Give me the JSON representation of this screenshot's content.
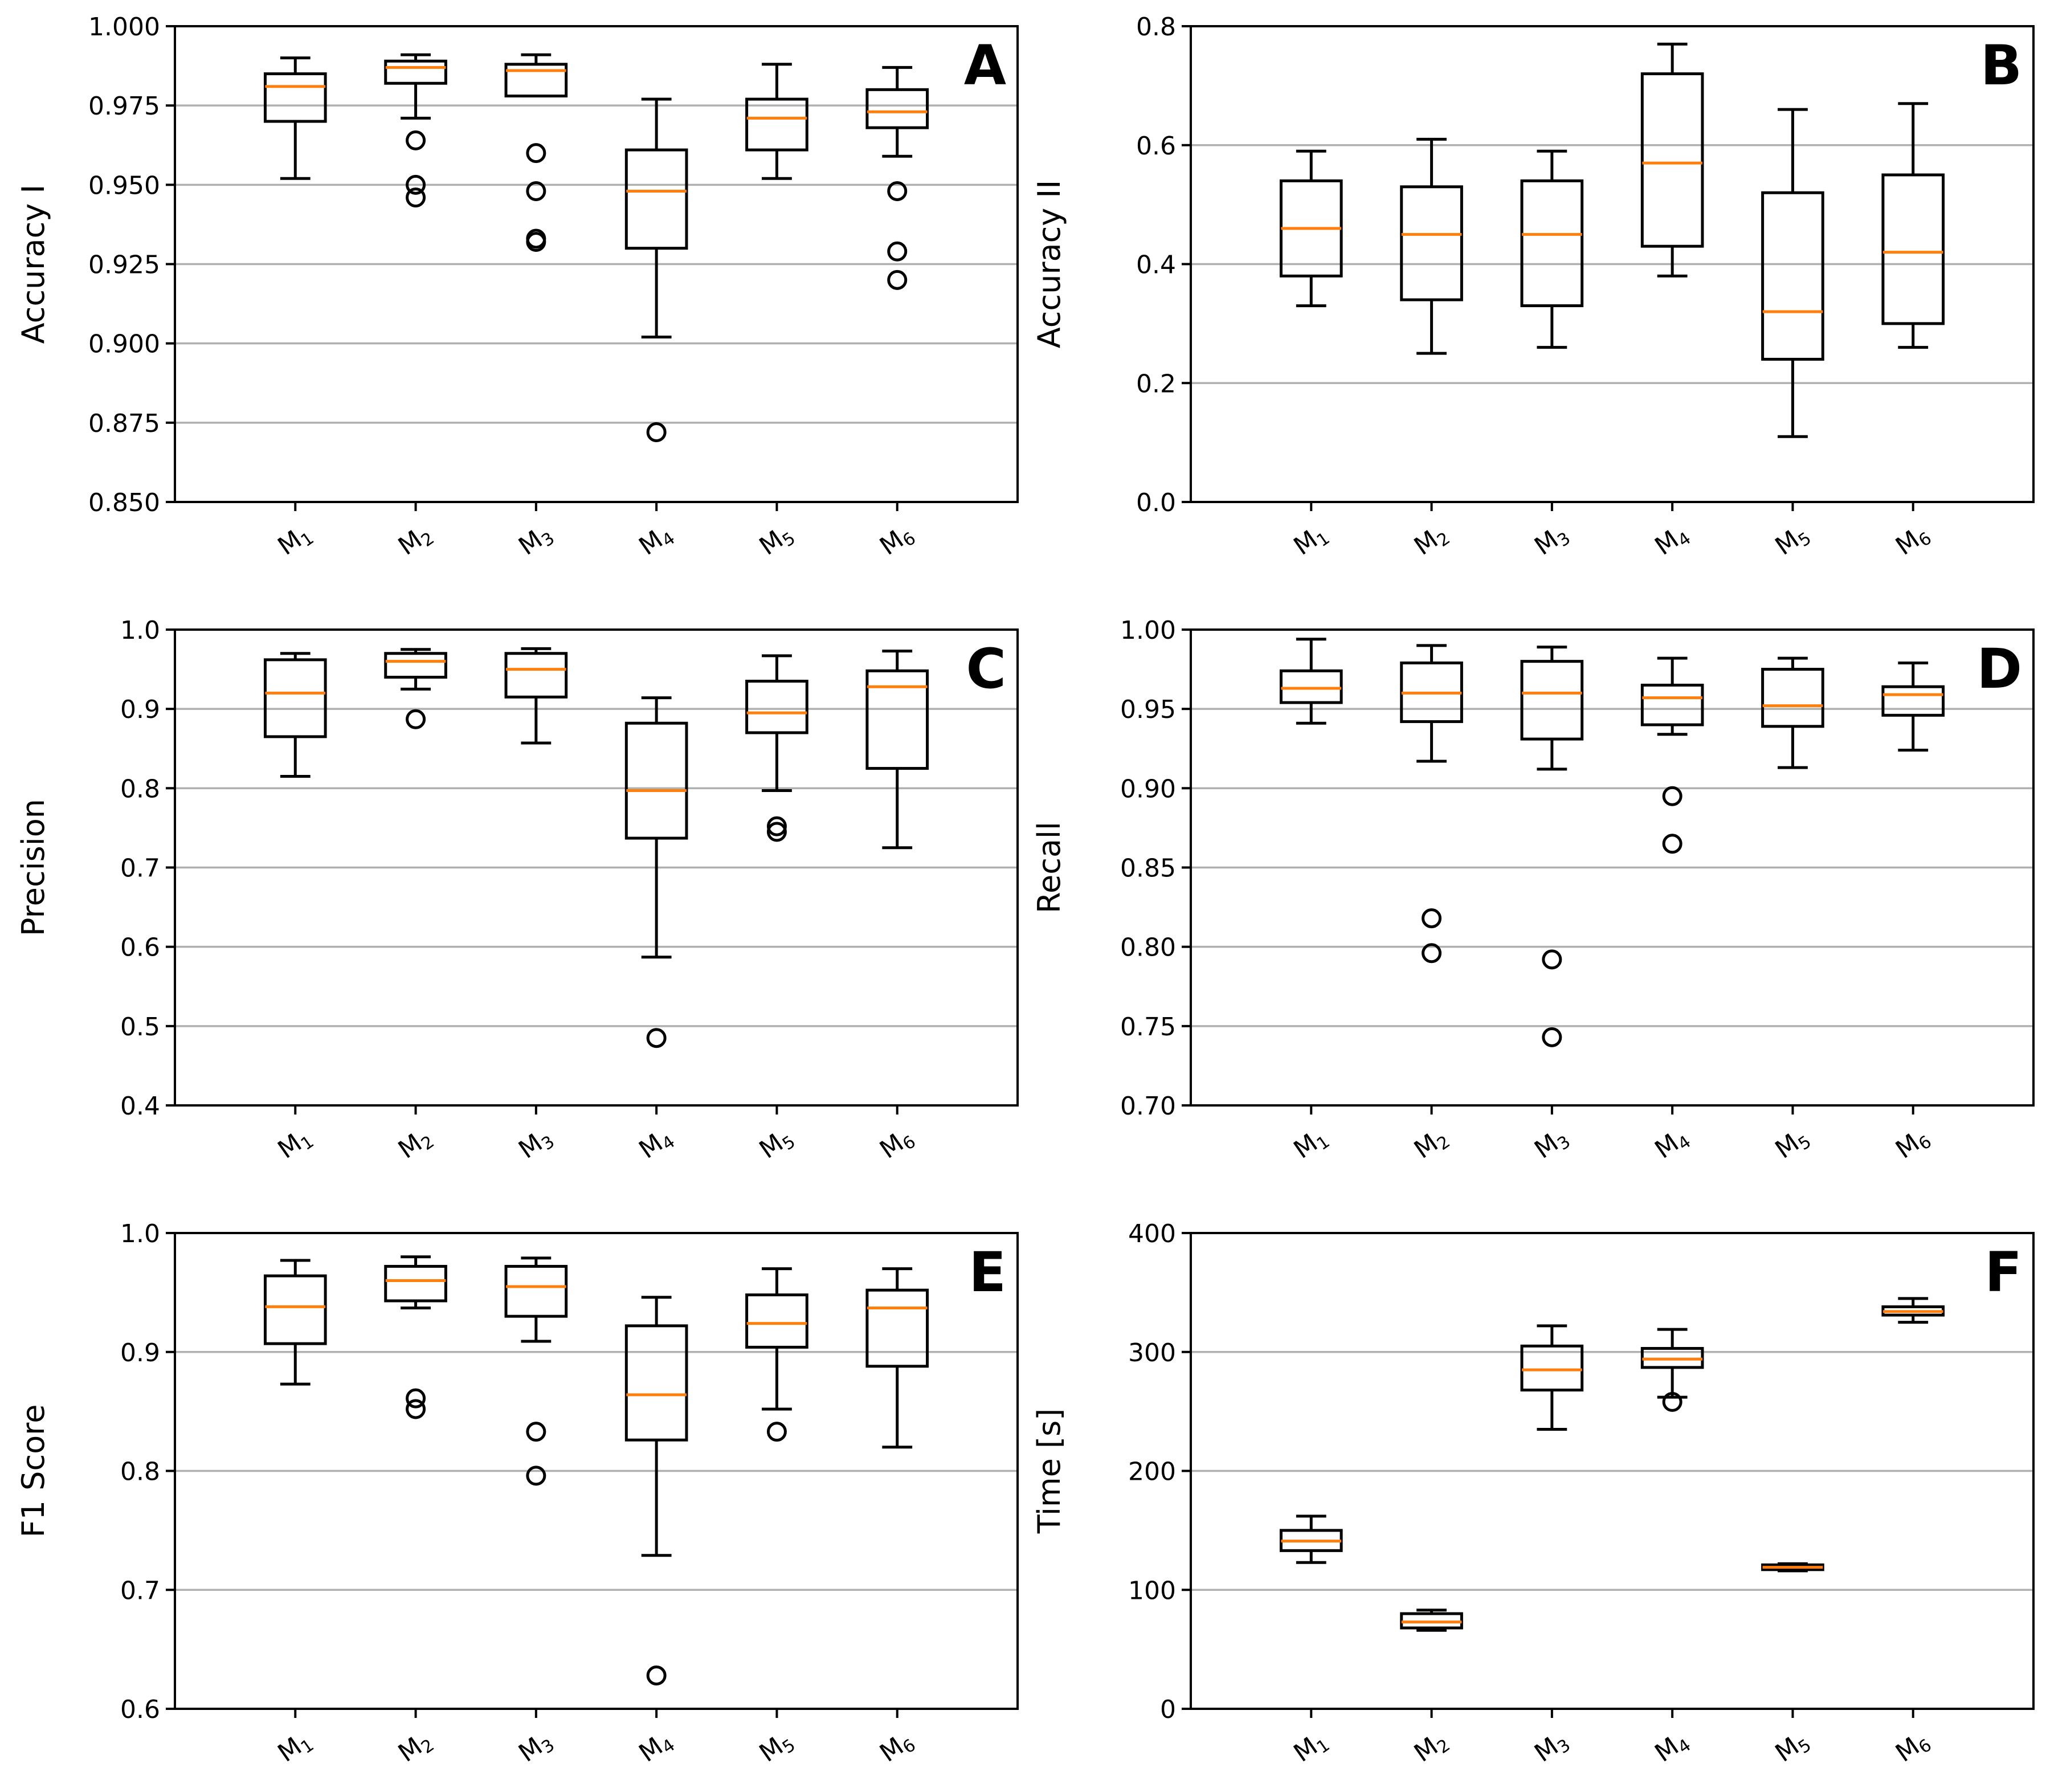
{
  "chart_data": [
    {
      "type": "box",
      "panel_label": "A",
      "ylabel": "Accuracy I",
      "ylim": [
        0.85,
        1.0
      ],
      "yticks": [
        "0.850",
        "0.875",
        "0.900",
        "0.925",
        "0.950",
        "0.975",
        "1.000"
      ],
      "yticks_values": [
        0.85,
        0.875,
        0.9,
        0.925,
        0.95,
        0.975,
        1.0
      ],
      "grid": "horizontal",
      "categories": [
        {
          "base": "M",
          "sub": "1"
        },
        {
          "base": "M",
          "sub": "2"
        },
        {
          "base": "M",
          "sub": "3"
        },
        {
          "base": "M",
          "sub": "4"
        },
        {
          "base": "M",
          "sub": "5"
        },
        {
          "base": "M",
          "sub": "6"
        }
      ],
      "boxes": [
        {
          "whislo": 0.952,
          "q1": 0.97,
          "med": 0.981,
          "q3": 0.985,
          "whishi": 0.99,
          "fliers": []
        },
        {
          "whislo": 0.971,
          "q1": 0.982,
          "med": 0.987,
          "q3": 0.989,
          "whishi": 0.991,
          "fliers": [
            0.964,
            0.95,
            0.946
          ]
        },
        {
          "whislo": 0.978,
          "q1": 0.978,
          "med": 0.986,
          "q3": 0.988,
          "whishi": 0.991,
          "fliers": [
            0.96,
            0.948,
            0.933,
            0.932
          ]
        },
        {
          "whislo": 0.902,
          "q1": 0.93,
          "med": 0.948,
          "q3": 0.961,
          "whishi": 0.977,
          "fliers": [
            0.872
          ]
        },
        {
          "whislo": 0.952,
          "q1": 0.961,
          "med": 0.971,
          "q3": 0.977,
          "whishi": 0.988,
          "fliers": []
        },
        {
          "whislo": 0.959,
          "q1": 0.968,
          "med": 0.973,
          "q3": 0.98,
          "whishi": 0.987,
          "fliers": [
            0.948,
            0.929,
            0.92
          ]
        }
      ]
    },
    {
      "type": "box",
      "panel_label": "B",
      "ylabel": "Accuracy II",
      "ylim": [
        0.0,
        0.8
      ],
      "yticks": [
        "0.0",
        "0.2",
        "0.4",
        "0.6",
        "0.8"
      ],
      "yticks_values": [
        0.0,
        0.2,
        0.4,
        0.6,
        0.8
      ],
      "grid": "horizontal",
      "categories": [
        {
          "base": "M",
          "sub": "1"
        },
        {
          "base": "M",
          "sub": "2"
        },
        {
          "base": "M",
          "sub": "3"
        },
        {
          "base": "M",
          "sub": "4"
        },
        {
          "base": "M",
          "sub": "5"
        },
        {
          "base": "M",
          "sub": "6"
        }
      ],
      "boxes": [
        {
          "whislo": 0.33,
          "q1": 0.38,
          "med": 0.46,
          "q3": 0.54,
          "whishi": 0.59,
          "fliers": []
        },
        {
          "whislo": 0.25,
          "q1": 0.34,
          "med": 0.45,
          "q3": 0.53,
          "whishi": 0.61,
          "fliers": []
        },
        {
          "whislo": 0.26,
          "q1": 0.33,
          "med": 0.45,
          "q3": 0.54,
          "whishi": 0.59,
          "fliers": []
        },
        {
          "whislo": 0.38,
          "q1": 0.43,
          "med": 0.57,
          "q3": 0.72,
          "whishi": 0.77,
          "fliers": []
        },
        {
          "whislo": 0.11,
          "q1": 0.24,
          "med": 0.32,
          "q3": 0.52,
          "whishi": 0.66,
          "fliers": []
        },
        {
          "whislo": 0.26,
          "q1": 0.3,
          "med": 0.42,
          "q3": 0.55,
          "whishi": 0.67,
          "fliers": []
        }
      ]
    },
    {
      "type": "box",
      "panel_label": "C",
      "ylabel": "Precision",
      "ylim": [
        0.4,
        1.0
      ],
      "yticks": [
        "0.4",
        "0.5",
        "0.6",
        "0.7",
        "0.8",
        "0.9",
        "1.0"
      ],
      "yticks_values": [
        0.4,
        0.5,
        0.6,
        0.7,
        0.8,
        0.9,
        1.0
      ],
      "grid": "horizontal",
      "categories": [
        {
          "base": "M",
          "sub": "1"
        },
        {
          "base": "M",
          "sub": "2"
        },
        {
          "base": "M",
          "sub": "3"
        },
        {
          "base": "M",
          "sub": "4"
        },
        {
          "base": "M",
          "sub": "5"
        },
        {
          "base": "M",
          "sub": "6"
        }
      ],
      "boxes": [
        {
          "whislo": 0.815,
          "q1": 0.865,
          "med": 0.92,
          "q3": 0.962,
          "whishi": 0.97,
          "fliers": []
        },
        {
          "whislo": 0.925,
          "q1": 0.94,
          "med": 0.96,
          "q3": 0.97,
          "whishi": 0.975,
          "fliers": [
            0.887
          ]
        },
        {
          "whislo": 0.857,
          "q1": 0.915,
          "med": 0.95,
          "q3": 0.97,
          "whishi": 0.976,
          "fliers": []
        },
        {
          "whislo": 0.587,
          "q1": 0.737,
          "med": 0.797,
          "q3": 0.882,
          "whishi": 0.914,
          "fliers": [
            0.485
          ]
        },
        {
          "whislo": 0.797,
          "q1": 0.87,
          "med": 0.895,
          "q3": 0.935,
          "whishi": 0.967,
          "fliers": [
            0.752,
            0.745
          ]
        },
        {
          "whislo": 0.725,
          "q1": 0.825,
          "med": 0.928,
          "q3": 0.948,
          "whishi": 0.973,
          "fliers": []
        }
      ]
    },
    {
      "type": "box",
      "panel_label": "D",
      "ylabel": "Recall",
      "ylim": [
        0.7,
        1.0
      ],
      "yticks": [
        "0.70",
        "0.75",
        "0.80",
        "0.85",
        "0.90",
        "0.95",
        "1.00"
      ],
      "yticks_values": [
        0.7,
        0.75,
        0.8,
        0.85,
        0.9,
        0.95,
        1.0
      ],
      "grid": "horizontal",
      "categories": [
        {
          "base": "M",
          "sub": "1"
        },
        {
          "base": "M",
          "sub": "2"
        },
        {
          "base": "M",
          "sub": "3"
        },
        {
          "base": "M",
          "sub": "4"
        },
        {
          "base": "M",
          "sub": "5"
        },
        {
          "base": "M",
          "sub": "6"
        }
      ],
      "boxes": [
        {
          "whislo": 0.941,
          "q1": 0.954,
          "med": 0.963,
          "q3": 0.974,
          "whishi": 0.994,
          "fliers": []
        },
        {
          "whislo": 0.917,
          "q1": 0.942,
          "med": 0.96,
          "q3": 0.979,
          "whishi": 0.99,
          "fliers": [
            0.818,
            0.796
          ]
        },
        {
          "whislo": 0.912,
          "q1": 0.931,
          "med": 0.96,
          "q3": 0.98,
          "whishi": 0.989,
          "fliers": [
            0.792,
            0.743
          ]
        },
        {
          "whislo": 0.934,
          "q1": 0.94,
          "med": 0.957,
          "q3": 0.965,
          "whishi": 0.982,
          "fliers": [
            0.895,
            0.865
          ]
        },
        {
          "whislo": 0.913,
          "q1": 0.939,
          "med": 0.952,
          "q3": 0.975,
          "whishi": 0.982,
          "fliers": []
        },
        {
          "whislo": 0.924,
          "q1": 0.946,
          "med": 0.959,
          "q3": 0.964,
          "whishi": 0.979,
          "fliers": []
        }
      ]
    },
    {
      "type": "box",
      "panel_label": "E",
      "ylabel": "F1 Score",
      "ylim": [
        0.6,
        1.0
      ],
      "yticks": [
        "0.6",
        "0.7",
        "0.8",
        "0.9",
        "1.0"
      ],
      "yticks_values": [
        0.6,
        0.7,
        0.8,
        0.9,
        1.0
      ],
      "grid": "horizontal",
      "categories": [
        {
          "base": "M",
          "sub": "1"
        },
        {
          "base": "M",
          "sub": "2"
        },
        {
          "base": "M",
          "sub": "3"
        },
        {
          "base": "M",
          "sub": "4"
        },
        {
          "base": "M",
          "sub": "5"
        },
        {
          "base": "M",
          "sub": "6"
        }
      ],
      "boxes": [
        {
          "whislo": 0.873,
          "q1": 0.907,
          "med": 0.938,
          "q3": 0.964,
          "whishi": 0.977,
          "fliers": []
        },
        {
          "whislo": 0.937,
          "q1": 0.943,
          "med": 0.96,
          "q3": 0.972,
          "whishi": 0.98,
          "fliers": [
            0.861,
            0.852
          ]
        },
        {
          "whislo": 0.909,
          "q1": 0.93,
          "med": 0.955,
          "q3": 0.972,
          "whishi": 0.979,
          "fliers": [
            0.833,
            0.796
          ]
        },
        {
          "whislo": 0.729,
          "q1": 0.826,
          "med": 0.864,
          "q3": 0.922,
          "whishi": 0.946,
          "fliers": [
            0.628
          ]
        },
        {
          "whislo": 0.852,
          "q1": 0.904,
          "med": 0.924,
          "q3": 0.948,
          "whishi": 0.97,
          "fliers": [
            0.833
          ]
        },
        {
          "whislo": 0.82,
          "q1": 0.888,
          "med": 0.937,
          "q3": 0.952,
          "whishi": 0.97,
          "fliers": []
        }
      ]
    },
    {
      "type": "box",
      "panel_label": "F",
      "ylabel": "Time [s]",
      "ylim": [
        0,
        400
      ],
      "yticks": [
        "0",
        "100",
        "200",
        "300",
        "400"
      ],
      "yticks_values": [
        0,
        100,
        200,
        300,
        400
      ],
      "grid": "horizontal",
      "categories": [
        {
          "base": "M",
          "sub": "1"
        },
        {
          "base": "M",
          "sub": "2"
        },
        {
          "base": "M",
          "sub": "3"
        },
        {
          "base": "M",
          "sub": "4"
        },
        {
          "base": "M",
          "sub": "5"
        },
        {
          "base": "M",
          "sub": "6"
        }
      ],
      "boxes": [
        {
          "whislo": 123,
          "q1": 133,
          "med": 141,
          "q3": 150,
          "whishi": 162,
          "fliers": []
        },
        {
          "whislo": 66,
          "q1": 68,
          "med": 73,
          "q3": 80,
          "whishi": 83,
          "fliers": []
        },
        {
          "whislo": 235,
          "q1": 268,
          "med": 285,
          "q3": 305,
          "whishi": 322,
          "fliers": []
        },
        {
          "whislo": 262,
          "q1": 287,
          "med": 294,
          "q3": 303,
          "whishi": 319,
          "fliers": [
            258
          ]
        },
        {
          "whislo": 116,
          "q1": 117,
          "med": 119,
          "q3": 121,
          "whishi": 122,
          "fliers": []
        },
        {
          "whislo": 325,
          "q1": 331,
          "med": 334,
          "q3": 338,
          "whishi": 345,
          "fliers": []
        }
      ]
    }
  ],
  "colors": {
    "box": "#000000",
    "median": "#ff7f0e",
    "grid": "#b0b0b0",
    "background": "#ffffff"
  }
}
